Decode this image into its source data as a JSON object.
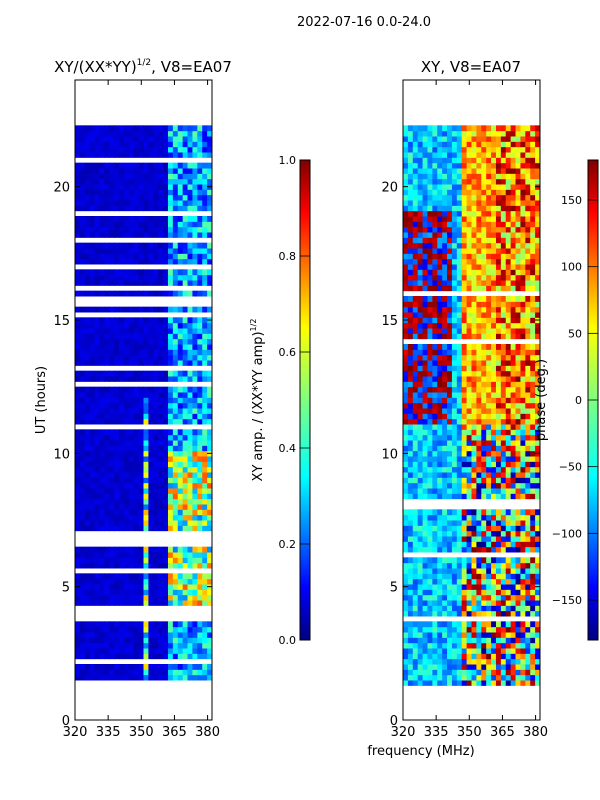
{
  "suptitle": "2022-07-16 0.0-24.0",
  "shared_xlabel": "frequency (MHz)",
  "colors": {
    "jet": [
      "#00007f",
      "#0000ff",
      "#007fff",
      "#00ffff",
      "#7fff7f",
      "#ffff00",
      "#ff7f00",
      "#ff0000",
      "#7f0000"
    ],
    "blank": "#ffffff"
  },
  "chart_data": [
    {
      "type": "heatmap",
      "title_main": "XY/(XX*YY)",
      "title_exp": "1/2",
      "title_tail": ", V8=EA07",
      "ylabel": "UT (hours)",
      "xlabel": "",
      "xlim": [
        320,
        382
      ],
      "ylim": [
        0,
        24
      ],
      "xticks": [
        320,
        335,
        350,
        365,
        380
      ],
      "yticks": [
        0,
        5,
        10,
        15,
        20
      ],
      "data_time_range": [
        1.3,
        22.3
      ],
      "colorbar": {
        "label_main": "XY amp. / (XX*YY amp)",
        "label_exp": "1/2",
        "range": [
          0.0,
          1.0
        ],
        "ticks": [
          0.0,
          0.2,
          0.4,
          0.6,
          0.8,
          1.0
        ],
        "tick_labels": [
          "0.0",
          "0.2",
          "0.4",
          "0.6",
          "0.8",
          "1.0"
        ]
      }
    },
    {
      "type": "heatmap",
      "title_main": "XY, V8=EA07",
      "ylabel": "",
      "xlabel": "frequency (MHz)",
      "xlim": [
        320,
        382
      ],
      "ylim": [
        0,
        24
      ],
      "xticks": [
        320,
        335,
        350,
        365,
        380
      ],
      "yticks": [
        0,
        5,
        10,
        15,
        20
      ],
      "data_time_range": [
        1.3,
        22.3
      ],
      "colorbar": {
        "label_main": "phase (deg.)",
        "range": [
          -180,
          180
        ],
        "ticks": [
          -150,
          -100,
          -50,
          0,
          50,
          100,
          150
        ],
        "tick_labels": [
          "−150",
          "−100",
          "−50",
          "0",
          "50",
          "100",
          "150"
        ]
      }
    }
  ]
}
